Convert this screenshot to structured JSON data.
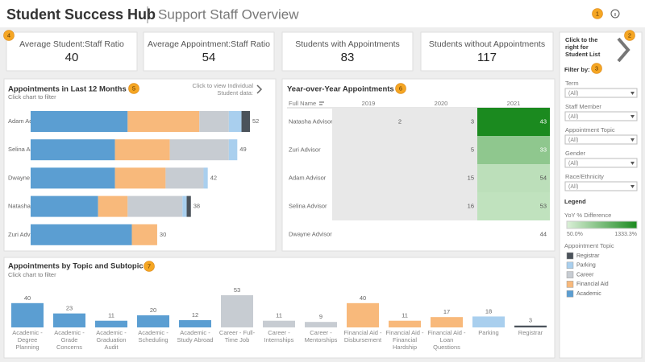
{
  "header": {
    "title": "Student Success Hub",
    "subtitle": "Support Staff Overview"
  },
  "badges": [
    1,
    2,
    3,
    4,
    5,
    6,
    7
  ],
  "kpis": [
    {
      "label": "Average Student:Staff Ratio",
      "value": 40
    },
    {
      "label": "Average Appointment:Staff Ratio",
      "value": 54
    },
    {
      "label": "Students with Appointments",
      "value": 83
    },
    {
      "label": "Students without Appointments",
      "value": 117
    }
  ],
  "side_panel": {
    "link_text": "Click to the right for Student List",
    "filter_heading": "Filter by:",
    "filters": [
      {
        "label": "Term",
        "value": "(All)"
      },
      {
        "label": "Staff Member",
        "value": "(All)"
      },
      {
        "label": "Appointment Topic",
        "value": "(All)"
      },
      {
        "label": "Gender",
        "value": "(All)"
      },
      {
        "label": "Race/Ethnicity",
        "value": "(All)"
      }
    ],
    "legend_heading": "Legend",
    "color_legend": {
      "title": "YoY % Difference",
      "min": {
        "value": 50,
        "label": "50.0%"
      },
      "max": {
        "value": 1333.3,
        "label": "1333.3%"
      }
    },
    "topic_legend_title": "Appointment Topic"
  },
  "chart_data": [
    {
      "type": "stacked_bar_h",
      "title": "Appointments in Last 12 Months",
      "subtitle": "Click chart to filter",
      "note": "Click to view Individual Student data:",
      "categories": [
        "Adam Advisor",
        "Selina Advisor",
        "Dwayne Advisor",
        "Natasha Advisor",
        "Zuri Advisor"
      ],
      "series": [
        {
          "name": "Academic",
          "color": "#5b9ed2",
          "values": [
            23,
            20,
            20,
            16,
            24
          ]
        },
        {
          "name": "Financial Aid",
          "color": "#f8b97b",
          "values": [
            17,
            13,
            12,
            7,
            6
          ]
        },
        {
          "name": "Career",
          "color": "#c7ccd2",
          "values": [
            7,
            14,
            9,
            13,
            0
          ]
        },
        {
          "name": "Parking",
          "color": "#a9cfee",
          "values": [
            3,
            2,
            1,
            1,
            0
          ]
        },
        {
          "name": "Registrar",
          "color": "#4b535b",
          "values": [
            2,
            0,
            0,
            1,
            0
          ]
        }
      ],
      "totals": [
        52,
        49,
        42,
        38,
        30
      ]
    },
    {
      "type": "heatmap",
      "title": "Year-over-Year Appointments",
      "row_header": "Full Name",
      "columns": [
        2019,
        2020,
        2021
      ],
      "rows": [
        "Natasha Advisor",
        "Zuri Advisor",
        "Adam Advisor",
        "Selina Advisor",
        "Dwayne Advisor"
      ],
      "values": [
        [
          2,
          3,
          43
        ],
        [
          null,
          5,
          33
        ],
        [
          null,
          15,
          54
        ],
        [
          null,
          16,
          53
        ],
        [
          null,
          null,
          44
        ]
      ],
      "color_range": [
        "#dbf0d8",
        "#1b8a1f"
      ]
    },
    {
      "type": "bar",
      "title": "Appointments by Topic and Subtopic",
      "subtitle": "Click chart to filter",
      "categories": [
        "Academic - Degree Planning",
        "Academic - Grade Concerns",
        "Academic - Graduation Audit",
        "Academic - Scheduling",
        "Academic - Study Abroad",
        "Career - Full-Time Job",
        "Career - Internships",
        "Career - Mentorships",
        "Financial Aid - Disbursement",
        "Financial Aid - Financial Hardship",
        "Financial Aid - Loan Questions",
        "Parking",
        "Registrar"
      ],
      "values": [
        40,
        23,
        11,
        20,
        12,
        53,
        11,
        9,
        40,
        11,
        17,
        18,
        3
      ],
      "colors": [
        "#5b9ed2",
        "#5b9ed2",
        "#5b9ed2",
        "#5b9ed2",
        "#5b9ed2",
        "#c7ccd2",
        "#c7ccd2",
        "#c7ccd2",
        "#f8b97b",
        "#f8b97b",
        "#f8b97b",
        "#a9cfee",
        "#4b535b"
      ]
    }
  ]
}
